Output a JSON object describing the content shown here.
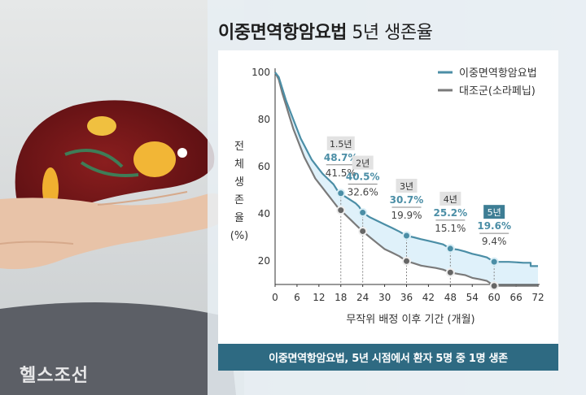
{
  "title_bold": "이중면역항암요법",
  "title_rest": " 5년 생존율",
  "footer": "이중면역항암요법, 5년 시점에서 환자 5명 중 1명 생존",
  "watermark": "헬스조선",
  "colors": {
    "combo": "#4b8ea6",
    "control": "#7a7a7a",
    "band": "#dff1fa",
    "footer_bg": "#2e6a82",
    "badge": "#e2e2e2",
    "badge_highlight": "#3d7d94"
  },
  "chart_data": {
    "type": "line",
    "title": "이중면역항암요법 5년 생존율",
    "xlabel": "무작위 배정 이후 기간 (개월)",
    "ylabel": "전체 생존율 (%)",
    "ylabel_chars": [
      "전",
      "체",
      "생",
      "존",
      "율",
      "(%)"
    ],
    "xlim": [
      0,
      72
    ],
    "ylim": [
      10,
      100
    ],
    "xticks": [
      0,
      6,
      12,
      18,
      24,
      30,
      36,
      42,
      48,
      54,
      60,
      66,
      72
    ],
    "yticks": [
      20,
      40,
      60,
      80,
      100
    ],
    "legend_position": "top-right",
    "series": [
      {
        "name": "이중면역항암요법",
        "color": "#4b8ea6",
        "points": [
          [
            0,
            100
          ],
          [
            1,
            98
          ],
          [
            2,
            93
          ],
          [
            3,
            88
          ],
          [
            4,
            84
          ],
          [
            5,
            80
          ],
          [
            6,
            76
          ],
          [
            7,
            72
          ],
          [
            8,
            69
          ],
          [
            9,
            66
          ],
          [
            10,
            63
          ],
          [
            11,
            61
          ],
          [
            12,
            59
          ],
          [
            13,
            57
          ],
          [
            14,
            55.5
          ],
          [
            15,
            54
          ],
          [
            16,
            52.5
          ],
          [
            17,
            50
          ],
          [
            18,
            48.7
          ],
          [
            19,
            47.5
          ],
          [
            20,
            46.5
          ],
          [
            21,
            45.5
          ],
          [
            22,
            44.5
          ],
          [
            23,
            43
          ],
          [
            24,
            40.5
          ],
          [
            26,
            38.5
          ],
          [
            28,
            37
          ],
          [
            30,
            35.5
          ],
          [
            32,
            34
          ],
          [
            34,
            32.5
          ],
          [
            36,
            30.7
          ],
          [
            38,
            30
          ],
          [
            40,
            29.2
          ],
          [
            42,
            28.5
          ],
          [
            44,
            27.8
          ],
          [
            46,
            27
          ],
          [
            48,
            25.2
          ],
          [
            50,
            24.8
          ],
          [
            52,
            24
          ],
          [
            54,
            23
          ],
          [
            56,
            22.3
          ],
          [
            58,
            21.5
          ],
          [
            60,
            19.6
          ],
          [
            62,
            19.6
          ],
          [
            64,
            19.6
          ],
          [
            66,
            19.4
          ],
          [
            68,
            19.2
          ],
          [
            70,
            19.2
          ],
          [
            70,
            17.8
          ],
          [
            72,
            17.8
          ]
        ]
      },
      {
        "name": "대조군(소라페닙)",
        "color": "#7a7a7a",
        "points": [
          [
            0,
            100
          ],
          [
            1,
            97
          ],
          [
            2,
            91
          ],
          [
            3,
            86
          ],
          [
            4,
            81
          ],
          [
            5,
            76
          ],
          [
            6,
            72
          ],
          [
            7,
            68
          ],
          [
            8,
            64
          ],
          [
            9,
            61
          ],
          [
            10,
            58
          ],
          [
            11,
            55
          ],
          [
            12,
            53
          ],
          [
            13,
            51
          ],
          [
            14,
            49
          ],
          [
            15,
            47
          ],
          [
            16,
            45
          ],
          [
            17,
            43
          ],
          [
            18,
            41.5
          ],
          [
            19,
            40
          ],
          [
            20,
            38.5
          ],
          [
            21,
            37
          ],
          [
            22,
            35.5
          ],
          [
            23,
            34
          ],
          [
            24,
            32.6
          ],
          [
            26,
            30
          ],
          [
            28,
            27.5
          ],
          [
            30,
            25
          ],
          [
            32,
            23.5
          ],
          [
            34,
            22
          ],
          [
            36,
            19.9
          ],
          [
            38,
            19
          ],
          [
            40,
            18
          ],
          [
            42,
            17.5
          ],
          [
            44,
            17
          ],
          [
            46,
            16.3
          ],
          [
            48,
            15.1
          ],
          [
            50,
            14.5
          ],
          [
            52,
            14
          ],
          [
            54,
            12.8
          ],
          [
            56,
            12.2
          ],
          [
            58,
            11.5
          ],
          [
            60,
            9.4
          ],
          [
            62,
            9.4
          ],
          [
            64,
            9.4
          ],
          [
            66,
            9.4
          ],
          [
            68,
            9.4
          ],
          [
            70,
            9.4
          ],
          [
            72,
            9.4
          ]
        ]
      }
    ],
    "annotations": [
      {
        "x": 18,
        "badge": "1.5년",
        "combo": 48.7,
        "control": 41.5,
        "combo_label": "48.7%",
        "control_label": "41.5%",
        "highlight": false
      },
      {
        "x": 24,
        "badge": "2년",
        "combo": 40.5,
        "control": 32.6,
        "combo_label": "40.5%",
        "control_label": "32.6%",
        "highlight": false
      },
      {
        "x": 36,
        "badge": "3년",
        "combo": 30.7,
        "control": 19.9,
        "combo_label": "30.7%",
        "control_label": "19.9%",
        "highlight": false
      },
      {
        "x": 48,
        "badge": "4년",
        "combo": 25.2,
        "control": 15.1,
        "combo_label": "25.2%",
        "control_label": "15.1%",
        "highlight": false
      },
      {
        "x": 60,
        "badge": "5년",
        "combo": 19.6,
        "control": 9.4,
        "combo_label": "19.6%",
        "control_label": "9.4%",
        "highlight": true
      }
    ]
  }
}
